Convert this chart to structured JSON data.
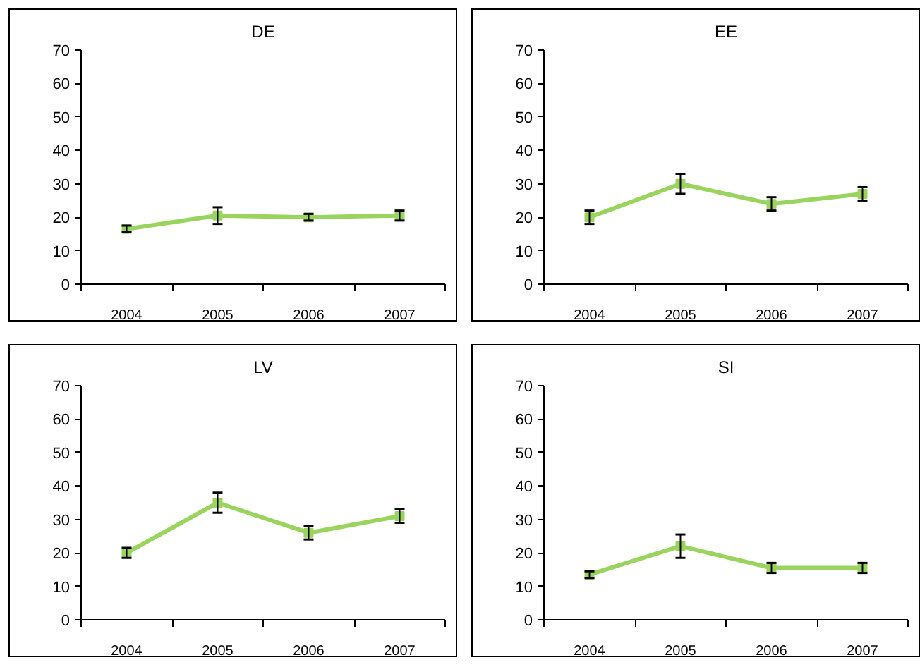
{
  "chart_data": [
    {
      "type": "line",
      "title": "DE",
      "categories": [
        "2004",
        "2005",
        "2006",
        "2007"
      ],
      "values": [
        16.5,
        20.5,
        20,
        20.5
      ],
      "errors": [
        1,
        2.5,
        1,
        1.5
      ],
      "color": "#99d45e",
      "marker": "square",
      "ylim": [
        0,
        70
      ],
      "yticks": [
        0,
        10,
        20,
        30,
        40,
        50,
        60,
        70
      ],
      "grid": false
    },
    {
      "type": "line",
      "title": "EE",
      "categories": [
        "2004",
        "2005",
        "2006",
        "2007"
      ],
      "values": [
        20,
        30,
        24,
        27
      ],
      "errors": [
        2,
        3,
        2,
        2
      ],
      "color": "#99d45e",
      "marker": "square",
      "ylim": [
        0,
        70
      ],
      "yticks": [
        0,
        10,
        20,
        30,
        40,
        50,
        60,
        70
      ],
      "grid": false
    },
    {
      "type": "line",
      "title": "LV",
      "categories": [
        "2004",
        "2005",
        "2006",
        "2007"
      ],
      "values": [
        20,
        35,
        26,
        31
      ],
      "errors": [
        1.5,
        3,
        2,
        2
      ],
      "color": "#99d45e",
      "marker": "square",
      "ylim": [
        0,
        70
      ],
      "yticks": [
        0,
        10,
        20,
        30,
        40,
        50,
        60,
        70
      ],
      "grid": false
    },
    {
      "type": "line",
      "title": "SI",
      "categories": [
        "2004",
        "2005",
        "2006",
        "2007"
      ],
      "values": [
        13.5,
        22,
        15.5,
        15.5
      ],
      "errors": [
        1,
        3.5,
        1.5,
        1.5
      ],
      "color": "#99d45e",
      "marker": "square",
      "ylim": [
        0,
        70
      ],
      "yticks": [
        0,
        10,
        20,
        30,
        40,
        50,
        60,
        70
      ],
      "grid": false
    }
  ]
}
